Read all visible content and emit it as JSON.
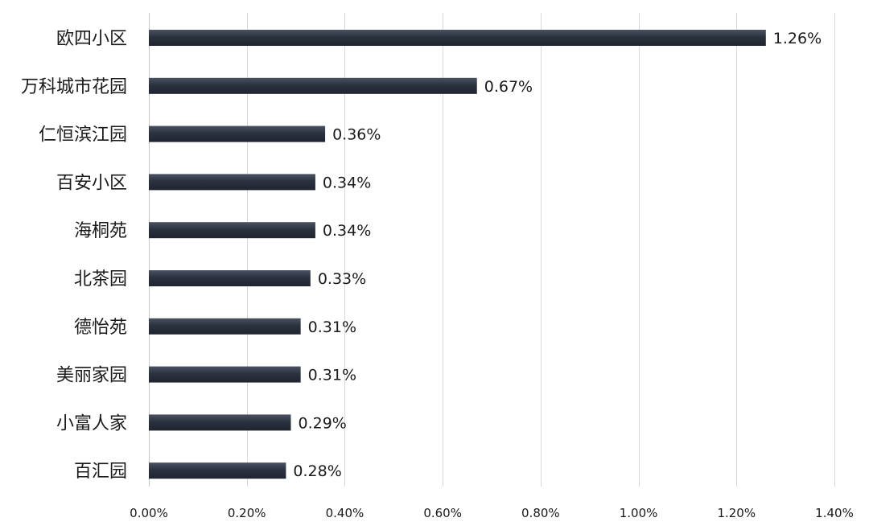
{
  "chart_data": {
    "type": "bar",
    "orientation": "horizontal",
    "title": "",
    "xlabel": "",
    "ylabel": "",
    "categories": [
      "欧四小区",
      "万科城市花园",
      "仁恒滨江园",
      "百安小区",
      "海桐苑",
      "北茶园",
      "德怡苑",
      "美丽家园",
      "小富人家",
      "百汇园"
    ],
    "values": [
      1.26,
      0.67,
      0.36,
      0.34,
      0.34,
      0.33,
      0.31,
      0.31,
      0.29,
      0.28
    ],
    "value_labels": [
      "1.26%",
      "0.67%",
      "0.36%",
      "0.34%",
      "0.34%",
      "0.33%",
      "0.31%",
      "0.31%",
      "0.29%",
      "0.28%"
    ],
    "xlim": [
      0,
      1.4
    ],
    "xticks": [
      0,
      0.2,
      0.4,
      0.6,
      0.8,
      1.0,
      1.2,
      1.4
    ],
    "xtick_labels": [
      "0.00%",
      "0.20%",
      "0.40%",
      "0.60%",
      "0.80%",
      "1.00%",
      "1.20%",
      "1.40%"
    ],
    "grid": "vertical",
    "legend": "none",
    "bar_color": "#2b323f"
  }
}
